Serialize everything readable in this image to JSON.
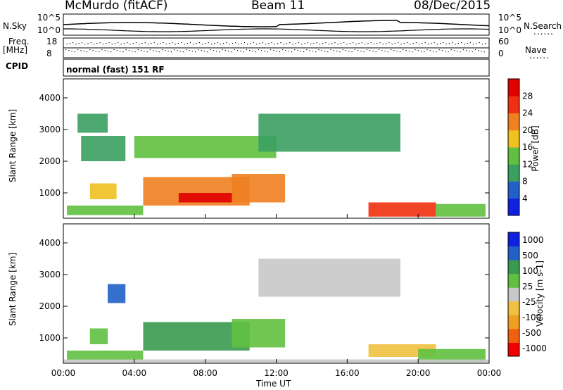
{
  "header": {
    "station": "McMurdo (fitACF)",
    "beam": "Beam 11",
    "date": "08/Dec/2015"
  },
  "left_labels": {
    "nsky": "N.Sky",
    "freq": "Freq.",
    "mhz": "[MHz]",
    "cpid": "CPID"
  },
  "right_labels": {
    "nsearch": "N.Search",
    "nave": "Nave",
    "dots": "......"
  },
  "noise_axis": {
    "top": "10^5",
    "bottom": "10^0",
    "right_top": "10^5",
    "right_bottom": "10^0"
  },
  "freq_axis": {
    "left_top": "18",
    "left_bottom": "8",
    "right_top": "60",
    "right_bottom": "0"
  },
  "cpid_text": "normal (fast) 151 RF",
  "x_axis": {
    "label": "Time UT",
    "ticks": [
      "00:00",
      "04:00",
      "08:00",
      "12:00",
      "16:00",
      "20:00",
      "00:00"
    ]
  },
  "chart_data": [
    {
      "type": "heatmap",
      "panel": "power",
      "ylabel": "Slant Range [km]",
      "yticks": [
        "1000",
        "2000",
        "3000",
        "4000"
      ],
      "ylim": [
        200,
        4600
      ],
      "xlim_hours": [
        0,
        24
      ],
      "colorbar": {
        "label": "Power [dB]",
        "ticks": [
          "4",
          "8",
          "12",
          "16",
          "20",
          "24",
          "28"
        ],
        "range": [
          0,
          32
        ],
        "colors": [
          "#1020e0",
          "#2060c8",
          "#3aa060",
          "#60c040",
          "#f0c020",
          "#f08020",
          "#f03010",
          "#e00000"
        ]
      },
      "regions": [
        {
          "t0": 0.2,
          "t1": 4.5,
          "r0": 300,
          "r1": 600,
          "v": 14
        },
        {
          "t0": 4.5,
          "t1": 10.5,
          "r0": 600,
          "r1": 1500,
          "v": 22
        },
        {
          "t0": 6.5,
          "t1": 9.5,
          "r0": 700,
          "r1": 1000,
          "v": 30
        },
        {
          "t0": 9.5,
          "t1": 12.5,
          "r0": 700,
          "r1": 1600,
          "v": 20
        },
        {
          "t0": 17.2,
          "t1": 21.0,
          "r0": 250,
          "r1": 700,
          "v": 27
        },
        {
          "t0": 21.0,
          "t1": 23.8,
          "r0": 250,
          "r1": 650,
          "v": 12
        },
        {
          "t0": 1.0,
          "t1": 3.5,
          "r0": 2000,
          "r1": 2800,
          "v": 10
        },
        {
          "t0": 4.0,
          "t1": 12.0,
          "r0": 2100,
          "r1": 2800,
          "v": 12
        },
        {
          "t0": 11.0,
          "t1": 19.0,
          "r0": 2300,
          "r1": 3500,
          "v": 10
        },
        {
          "t0": 0.8,
          "t1": 2.5,
          "r0": 2900,
          "r1": 3500,
          "v": 8
        },
        {
          "t0": 1.5,
          "t1": 3.0,
          "r0": 800,
          "r1": 1300,
          "v": 16
        }
      ]
    },
    {
      "type": "heatmap",
      "panel": "velocity",
      "ylabel": "Slant Range [km]",
      "yticks": [
        "1000",
        "2000",
        "3000",
        "4000"
      ],
      "ylim": [
        200,
        4600
      ],
      "xlim_hours": [
        0,
        24
      ],
      "colorbar": {
        "label": "Velocity [m s-1]",
        "ticks": [
          "1000",
          "500",
          "100",
          "25",
          "-25",
          "-100",
          "-500",
          "-1000"
        ],
        "range": [
          -1200,
          1200
        ],
        "colors": [
          "#f00000",
          "#f06010",
          "#f0a020",
          "#f0c040",
          "#c8c8c8",
          "#60c040",
          "#3a9a50",
          "#2060c8",
          "#1020e0"
        ]
      },
      "regions": [
        {
          "t0": 0.2,
          "t1": 4.5,
          "r0": 300,
          "r1": 600,
          "v": 300
        },
        {
          "t0": 4.5,
          "t1": 10.5,
          "r0": 600,
          "r1": 1500,
          "v": 400
        },
        {
          "t0": 9.5,
          "t1": 12.5,
          "r0": 700,
          "r1": 1600,
          "v": 150
        },
        {
          "t0": 17.2,
          "t1": 21.0,
          "r0": 400,
          "r1": 800,
          "v": -300
        },
        {
          "t0": 20.0,
          "t1": 23.8,
          "r0": 250,
          "r1": 650,
          "v": 200
        },
        {
          "t0": 0.0,
          "t1": 24.0,
          "r0": 220,
          "r1": 320,
          "v": -60
        },
        {
          "t0": 2.5,
          "t1": 3.5,
          "r0": 2100,
          "r1": 2700,
          "v": 800
        },
        {
          "t0": 11.0,
          "t1": 19.0,
          "r0": 2300,
          "r1": 3500,
          "v": 0
        },
        {
          "t0": 1.5,
          "t1": 2.5,
          "r0": 800,
          "r1": 1300,
          "v": 300
        }
      ]
    }
  ]
}
